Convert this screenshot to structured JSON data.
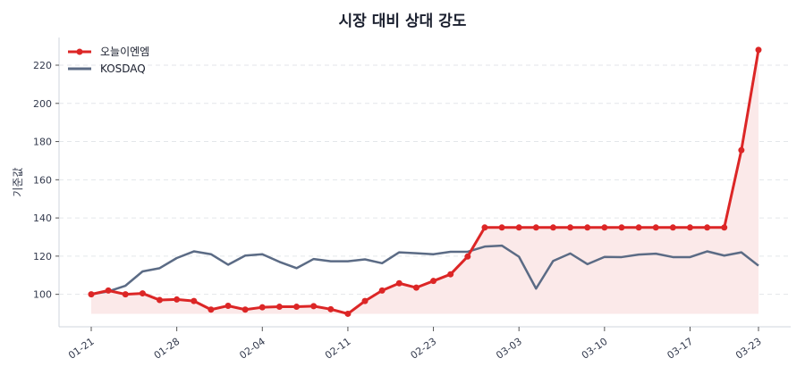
{
  "chart_data": {
    "type": "line",
    "title": "시장 대비 상대 강도",
    "xlabel": "",
    "ylabel": "기준값",
    "ylim": [
      83,
      234.5
    ],
    "yticks": [
      100,
      120,
      140,
      160,
      180,
      200,
      220
    ],
    "grid": "horizontal dashed",
    "legend_position": "top-left",
    "x": [
      "01-21",
      "01-22",
      "01-23",
      "01-24",
      "01-27",
      "01-28",
      "01-29",
      "01-30",
      "01-31",
      "02-03",
      "02-04",
      "02-05",
      "02-06",
      "02-07",
      "02-10",
      "02-11",
      "02-12",
      "02-13",
      "02-19",
      "02-20",
      "02-23",
      "02-24",
      "02-25",
      "02-26",
      "02-27",
      "03-03",
      "03-04",
      "03-05",
      "03-06",
      "03-09",
      "03-10",
      "03-11",
      "03-12",
      "03-13",
      "03-16",
      "03-17",
      "03-18",
      "03-19",
      "03-20",
      "03-23"
    ],
    "xticks": [
      "01-21",
      "01-28",
      "02-04",
      "02-11",
      "02-23",
      "03-03",
      "03-10",
      "03-17",
      "03-23"
    ],
    "series": [
      {
        "name": "오늘이엔엠",
        "color": "#dc2626",
        "markers": true,
        "fill": true,
        "fill_color": "#fbe9e9",
        "values": [
          100,
          102,
          100,
          100.5,
          97,
          97.3,
          96.5,
          92,
          94,
          92,
          93.2,
          93.5,
          93.5,
          93.8,
          92.2,
          89.8,
          96.5,
          102,
          105.8,
          103.5,
          107,
          110.5,
          119.8,
          135,
          135,
          135,
          135,
          135,
          135,
          135,
          135,
          135,
          135,
          135,
          135,
          135,
          135,
          135,
          175.5,
          228
        ]
      },
      {
        "name": "KOSDAQ",
        "color": "#5b6b85",
        "markers": false,
        "values": [
          100,
          101.5,
          104.5,
          112,
          113.7,
          119,
          122.5,
          121,
          115.5,
          120.3,
          121,
          117,
          113.7,
          118.5,
          117.3,
          117.3,
          118.3,
          116.3,
          122,
          121.5,
          121,
          122.3,
          122.3,
          125,
          125.5,
          119.7,
          103,
          117.5,
          121.4,
          115.8,
          119.6,
          119.5,
          120.8,
          121.3,
          119.5,
          119.5,
          122.5,
          120.3,
          122,
          115
        ]
      }
    ]
  }
}
